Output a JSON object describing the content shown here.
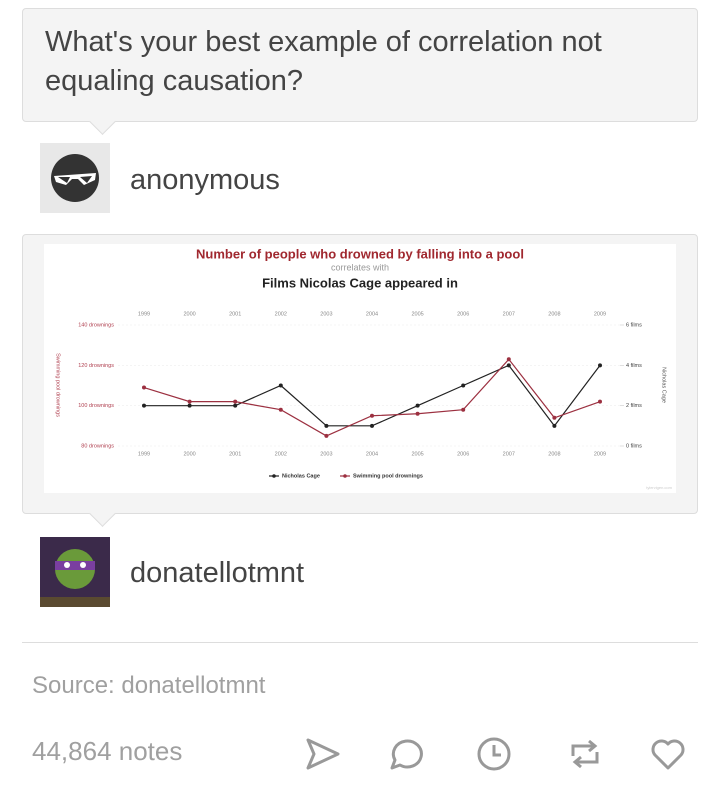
{
  "question": {
    "text": "What's your best example of correlation not equaling causation?"
  },
  "asker": {
    "name": "anonymous"
  },
  "chart_data": {
    "type": "line",
    "title": "Number of people who drowned by falling into a pool",
    "subtitle": "correlates with",
    "title2": "Films Nicolas Cage appeared in",
    "categories": [
      "1999",
      "2000",
      "2001",
      "2002",
      "2003",
      "2004",
      "2005",
      "2006",
      "2007",
      "2008",
      "2009"
    ],
    "series": [
      {
        "name": "Nicholas Cage",
        "color": "#222222",
        "axis": "y2",
        "values": [
          2,
          2,
          2,
          3,
          1,
          1,
          2,
          3,
          4,
          1,
          4
        ]
      },
      {
        "name": "Swimming pool drownings",
        "color": "#9c3040",
        "values": [
          109,
          102,
          102,
          98,
          85,
          95,
          96,
          98,
          123,
          94,
          102
        ]
      }
    ],
    "ylabel": "Swimming pool drownings",
    "y2label": "Nicholas Cage",
    "ylim": [
      80,
      140
    ],
    "yticks": [
      {
        "value": 80,
        "label": "80 drownings"
      },
      {
        "value": 100,
        "label": "100 drownings"
      },
      {
        "value": 120,
        "label": "120 drownings"
      },
      {
        "value": 140,
        "label": "140 drownings"
      }
    ],
    "y2lim": [
      0,
      6
    ],
    "y2ticks": [
      {
        "value": 0,
        "label": "0 films"
      },
      {
        "value": 2,
        "label": "2 films"
      },
      {
        "value": 4,
        "label": "4 films"
      },
      {
        "value": 6,
        "label": "6 films"
      }
    ],
    "grid": true,
    "legend": "bottom",
    "watermark": "tylervigen.com"
  },
  "answerer": {
    "name": "donatellotmnt"
  },
  "source": {
    "text": "Source: donatellotmnt"
  },
  "notes": {
    "text": "44,864 notes"
  }
}
